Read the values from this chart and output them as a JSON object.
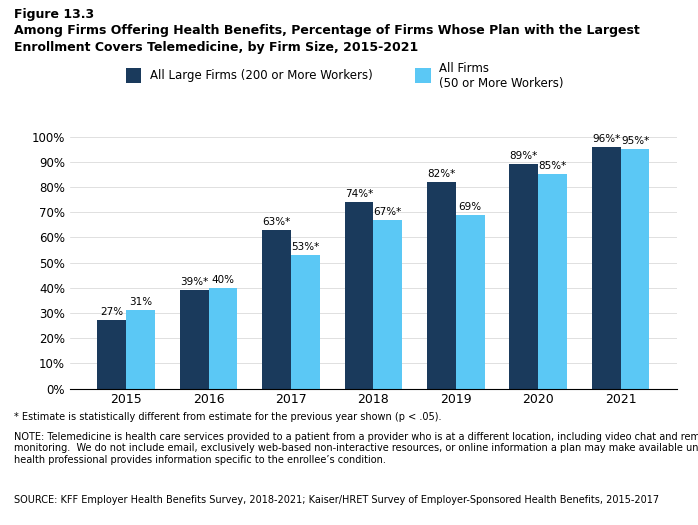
{
  "title_line1": "Figure 13.3",
  "title_line2": "Among Firms Offering Health Benefits, Percentage of Firms Whose Plan with the Largest",
  "title_line3": "Enrollment Covers Telemedicine, by Firm Size, 2015-2021",
  "years": [
    2015,
    2016,
    2017,
    2018,
    2019,
    2020,
    2021
  ],
  "large_firms": [
    27,
    39,
    63,
    74,
    82,
    89,
    96
  ],
  "all_firms": [
    31,
    40,
    53,
    67,
    69,
    85,
    95
  ],
  "large_firms_labels": [
    "27%",
    "39%*",
    "63%*",
    "74%*",
    "82%*",
    "89%*",
    "96%*"
  ],
  "all_firms_labels": [
    "31%",
    "40%",
    "53%*",
    "67%*",
    "69%",
    "85%*",
    "95%*"
  ],
  "color_large": "#1a3a5c",
  "color_all": "#5bc8f5",
  "ylim": [
    0,
    100
  ],
  "yticks": [
    0,
    10,
    20,
    30,
    40,
    50,
    60,
    70,
    80,
    90,
    100
  ],
  "ytick_labels": [
    "0%",
    "10%",
    "20%",
    "30%",
    "40%",
    "50%",
    "60%",
    "70%",
    "80%",
    "90%",
    "100%"
  ],
  "legend_large": "All Large Firms (200 or More Workers)",
  "legend_all": "All Firms\n(50 or More Workers)",
  "footnote1": "* Estimate is statistically different from estimate for the previous year shown (p < .05).",
  "footnote2": "NOTE: Telemedicine is health care services provided to a patient from a provider who is at a different location, including video chat and remote\nmonitoring.  We do not include email, exclusively web-based non-interactive resources, or online information a plan may make available unless a\nhealth professional provides information specific to the enrollee’s condition.",
  "footnote3": "SOURCE: KFF Employer Health Benefits Survey, 2018-2021; Kaiser/HRET Survey of Employer-Sponsored Health Benefits, 2015-2017"
}
